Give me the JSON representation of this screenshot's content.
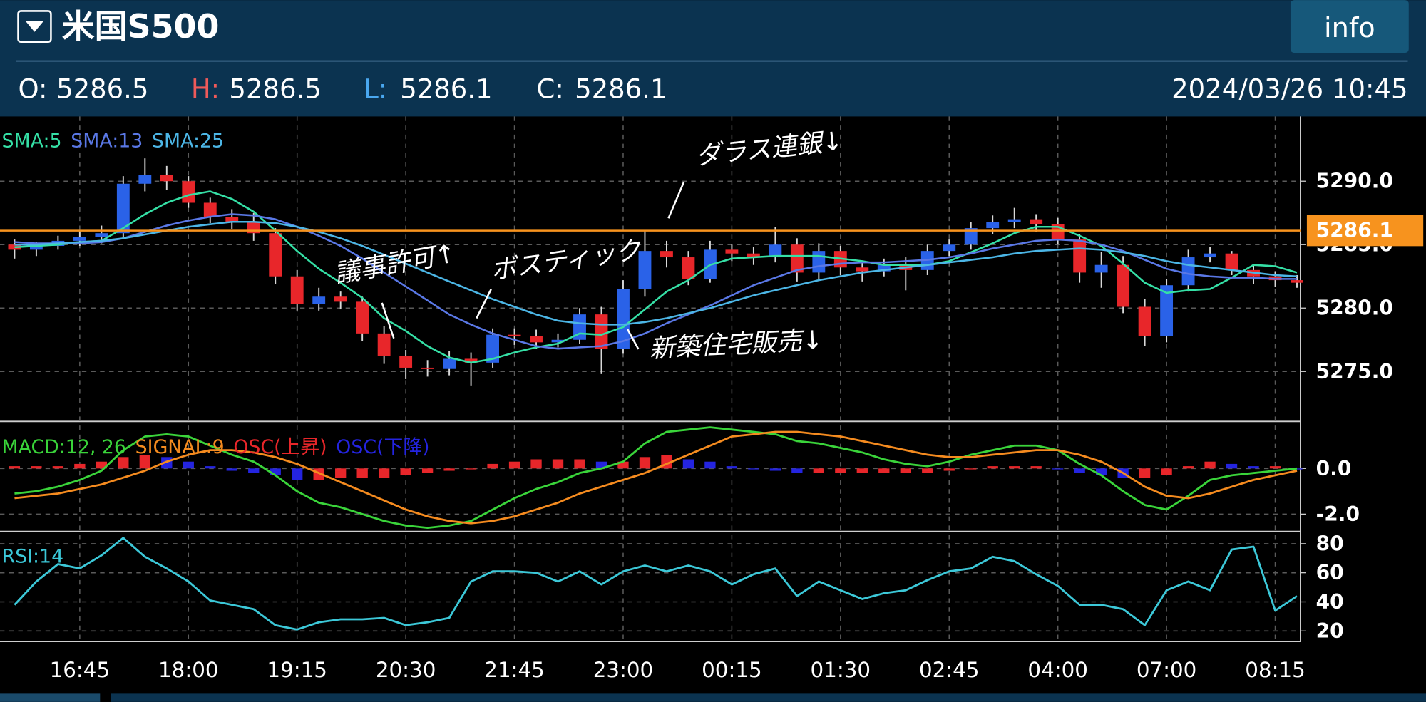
{
  "header": {
    "title": "米国S500",
    "button": "info",
    "ohlc": [
      {
        "label": "O:",
        "value": 5286.5,
        "color": "#ffffff"
      },
      {
        "label": "H:",
        "value": 5286.5,
        "color": "#ee5a5a"
      },
      {
        "label": "L:",
        "value": 5286.1,
        "color": "#4aa8f0"
      },
      {
        "label": "C:",
        "value": 5286.1,
        "color": "#ffffff"
      }
    ],
    "datetime": "2024/03/26 10:45"
  },
  "chart_data": [
    {
      "type": "candlestick",
      "categories": [
        null,
        null,
        null,
        "16:45",
        null,
        null,
        null,
        null,
        "18:00",
        null,
        null,
        null,
        null,
        "19:15",
        null,
        null,
        null,
        null,
        "20:30",
        null,
        null,
        null,
        null,
        "21:45",
        null,
        null,
        null,
        null,
        "23:00",
        null,
        null,
        null,
        null,
        "00:15",
        null,
        null,
        null,
        null,
        "01:30",
        null,
        null,
        null,
        null,
        "02:45",
        null,
        null,
        null,
        null,
        "04:00",
        null,
        null,
        null,
        null,
        "07:00",
        null,
        null,
        null,
        null,
        "08:15",
        null
      ],
      "open": [
        5285.0,
        5284.6,
        5284.9,
        5285.3,
        5285.6,
        5285.9,
        5289.8,
        5290.5,
        5290.0,
        5288.3,
        5287.2,
        5286.8,
        5285.9,
        5282.5,
        5280.3,
        5280.9,
        5280.5,
        5278.0,
        5276.2,
        5275.3,
        5275.2,
        5276.0,
        5275.7,
        5277.9,
        5277.8,
        5277.3,
        5277.5,
        5279.5,
        5276.8,
        5281.5,
        5284.5,
        5284.0,
        5282.3,
        5284.6,
        5284.3,
        5284.0,
        5285.0,
        5282.8,
        5284.5,
        5283.2,
        5282.9,
        5283.4,
        5283.0,
        5284.5,
        5285.0,
        5286.3,
        5286.8,
        5287.0,
        5286.6,
        5285.4,
        5282.8,
        5283.4,
        5280.1,
        5277.8,
        5281.8,
        5284.0,
        5284.3,
        5283.0,
        5282.5,
        5282.2
      ],
      "high": [
        5285.4,
        5285.2,
        5285.7,
        5286.1,
        5286.5,
        5290.4,
        5291.8,
        5291.2,
        5290.4,
        5288.7,
        5287.8,
        5287.5,
        5286.3,
        5283.0,
        5281.6,
        5281.3,
        5280.9,
        5278.6,
        5276.7,
        5275.9,
        5276.6,
        5276.5,
        5278.4,
        5278.4,
        5278.3,
        5278.0,
        5280.0,
        5280.1,
        5282.2,
        5286.1,
        5285.3,
        5284.5,
        5285.3,
        5285.0,
        5284.8,
        5286.4,
        5285.5,
        5285.1,
        5284.9,
        5283.6,
        5283.9,
        5284.0,
        5285.0,
        5285.4,
        5286.8,
        5287.3,
        5287.9,
        5287.4,
        5287.1,
        5285.8,
        5284.4,
        5284.1,
        5280.7,
        5282.3,
        5284.6,
        5284.8,
        5284.5,
        5283.4,
        5282.9,
        5282.6
      ],
      "low": [
        5283.9,
        5284.1,
        5284.6,
        5284.9,
        5285.1,
        5285.5,
        5289.2,
        5289.3,
        5287.9,
        5286.7,
        5286.2,
        5285.3,
        5281.9,
        5279.8,
        5279.8,
        5279.9,
        5277.4,
        5275.6,
        5274.4,
        5274.6,
        5274.7,
        5273.9,
        5275.3,
        5277.1,
        5276.8,
        5276.9,
        5277.2,
        5274.8,
        5276.4,
        5280.9,
        5283.2,
        5281.8,
        5282.0,
        5283.7,
        5283.4,
        5283.6,
        5282.1,
        5282.3,
        5282.6,
        5282.1,
        5282.5,
        5281.4,
        5282.6,
        5284.1,
        5284.6,
        5285.8,
        5286.3,
        5286.0,
        5285.0,
        5282.0,
        5281.6,
        5279.6,
        5277.0,
        5277.3,
        5281.3,
        5283.6,
        5282.6,
        5281.9,
        5281.7,
        5281.6
      ],
      "close": [
        5284.6,
        5284.9,
        5285.3,
        5285.6,
        5285.9,
        5289.8,
        5290.5,
        5290.0,
        5288.3,
        5287.2,
        5286.8,
        5285.9,
        5282.5,
        5280.3,
        5280.9,
        5280.5,
        5278.0,
        5276.2,
        5275.3,
        5275.2,
        5276.0,
        5275.7,
        5277.9,
        5277.8,
        5277.3,
        5277.5,
        5279.5,
        5276.8,
        5281.5,
        5284.5,
        5284.0,
        5282.3,
        5284.6,
        5284.3,
        5284.0,
        5285.0,
        5282.8,
        5284.5,
        5283.2,
        5282.9,
        5283.4,
        5283.0,
        5284.5,
        5285.0,
        5286.3,
        5286.8,
        5287.0,
        5286.6,
        5285.4,
        5282.8,
        5283.4,
        5280.1,
        5277.8,
        5281.8,
        5284.0,
        5284.3,
        5283.0,
        5282.5,
        5282.2,
        5282.0
      ],
      "up_color": "#2a62e8",
      "down_color": "#e8262a",
      "wick_color": "#d8d8d8",
      "series": [
        {
          "name": "SMA:5",
          "color": "#35e0a6",
          "values": [
            5284.8,
            5284.9,
            5285.0,
            5285.2,
            5285.3,
            5286.3,
            5287.4,
            5288.3,
            5288.9,
            5289.2,
            5288.6,
            5287.6,
            5286.1,
            5284.5,
            5283.1,
            5282.0,
            5280.8,
            5279.2,
            5278.2,
            5277.0,
            5276.1,
            5275.7,
            5276.0,
            5276.5,
            5276.9,
            5277.2,
            5278.0,
            5277.9,
            5278.5,
            5279.9,
            5281.3,
            5282.2,
            5283.4,
            5283.9,
            5284.0,
            5284.1,
            5284.1,
            5284.1,
            5283.9,
            5283.7,
            5283.4,
            5283.4,
            5283.4,
            5283.7,
            5284.4,
            5285.1,
            5285.9,
            5286.4,
            5286.4,
            5285.7,
            5284.9,
            5283.5,
            5282.0,
            5281.2,
            5281.4,
            5281.5,
            5282.4,
            5283.4,
            5283.3,
            5282.8
          ]
        },
        {
          "name": "SMA:13",
          "color": "#5a78e6",
          "values": [
            5285.2,
            5285.1,
            5285.1,
            5285.1,
            5285.2,
            5285.5,
            5286.0,
            5286.5,
            5286.9,
            5287.2,
            5287.4,
            5287.3,
            5287.0,
            5286.4,
            5285.7,
            5284.9,
            5283.9,
            5282.8,
            5281.7,
            5280.6,
            5279.5,
            5278.7,
            5278.0,
            5277.5,
            5277.0,
            5276.8,
            5276.9,
            5277.0,
            5277.4,
            5278.0,
            5278.8,
            5279.5,
            5280.2,
            5281.0,
            5281.8,
            5282.4,
            5283.0,
            5283.3,
            5283.5,
            5283.6,
            5283.6,
            5283.7,
            5283.8,
            5284.0,
            5284.3,
            5284.7,
            5285.0,
            5285.3,
            5285.4,
            5285.3,
            5285.0,
            5284.5,
            5283.8,
            5283.1,
            5282.7,
            5282.5,
            5282.4,
            5282.4,
            5282.3,
            5282.3
          ]
        },
        {
          "name": "SMA:25",
          "color": "#4cb6e6",
          "values": [
            5285.0,
            5285.0,
            5285.1,
            5285.2,
            5285.3,
            5285.5,
            5285.8,
            5286.1,
            5286.4,
            5286.6,
            5286.8,
            5286.8,
            5286.7,
            5286.4,
            5286.0,
            5285.5,
            5284.9,
            5284.2,
            5283.5,
            5282.8,
            5282.1,
            5281.4,
            5280.7,
            5280.1,
            5279.5,
            5279.0,
            5278.8,
            5278.7,
            5278.7,
            5278.9,
            5279.2,
            5279.6,
            5280.0,
            5280.5,
            5281.0,
            5281.4,
            5281.8,
            5282.2,
            5282.5,
            5282.8,
            5283.0,
            5283.2,
            5283.4,
            5283.6,
            5283.8,
            5284.0,
            5284.3,
            5284.5,
            5284.6,
            5284.7,
            5284.6,
            5284.4,
            5284.1,
            5283.7,
            5283.4,
            5283.2,
            5283.0,
            5282.8,
            5282.6,
            5282.5
          ]
        }
      ],
      "ylim": [
        5271.1,
        5295.1
      ],
      "yticks": [
        {
          "value": 5275,
          "label": "5275.0"
        },
        {
          "value": 5280,
          "label": "5280.0"
        },
        {
          "value": 5285,
          "label": "5285.0"
        },
        {
          "value": 5290,
          "label": "5290.0"
        }
      ],
      "grid": true,
      "last_price": 5286.1,
      "last_price_color": "#f7931e",
      "annotations": [
        "ダラス連銀↓",
        "ボスティック",
        "議事許可↑",
        "新築住宅販売↓"
      ]
    },
    {
      "type": "macd",
      "series": [
        {
          "name": "MACD:12, 26",
          "color": "#3ad43a",
          "values": [
            -1.1,
            -1.0,
            -0.8,
            -0.5,
            -0.1,
            0.8,
            1.4,
            1.5,
            1.4,
            1.0,
            0.6,
            0.3,
            -0.3,
            -1.0,
            -1.5,
            -1.7,
            -2.0,
            -2.3,
            -2.5,
            -2.6,
            -2.5,
            -2.3,
            -1.8,
            -1.3,
            -0.9,
            -0.6,
            -0.2,
            0.0,
            0.3,
            1.1,
            1.6,
            1.7,
            1.8,
            1.7,
            1.6,
            1.5,
            1.2,
            1.1,
            0.9,
            0.7,
            0.4,
            0.2,
            0.1,
            0.3,
            0.6,
            0.8,
            1.0,
            1.0,
            0.8,
            0.2,
            -0.3,
            -1.0,
            -1.6,
            -1.8,
            -1.2,
            -0.5,
            -0.3,
            -0.2,
            -0.1,
            0.0
          ]
        },
        {
          "name": "SIGNAL:9",
          "color": "#f58b1f",
          "values": [
            -1.3,
            -1.2,
            -1.1,
            -0.9,
            -0.7,
            -0.4,
            -0.1,
            0.3,
            0.6,
            0.8,
            0.8,
            0.7,
            0.5,
            0.2,
            -0.2,
            -0.6,
            -1.0,
            -1.4,
            -1.8,
            -2.1,
            -2.3,
            -2.4,
            -2.3,
            -2.1,
            -1.8,
            -1.5,
            -1.1,
            -0.8,
            -0.5,
            -0.2,
            0.2,
            0.6,
            1.0,
            1.4,
            1.5,
            1.6,
            1.6,
            1.5,
            1.4,
            1.2,
            1.0,
            0.8,
            0.6,
            0.5,
            0.5,
            0.6,
            0.7,
            0.8,
            0.8,
            0.6,
            0.3,
            -0.2,
            -0.8,
            -1.2,
            -1.3,
            -1.1,
            -0.8,
            -0.5,
            -0.3,
            -0.1
          ]
        }
      ],
      "histogram": {
        "values": [
          0.1,
          0.1,
          0.1,
          0.2,
          0.3,
          0.5,
          0.6,
          0.5,
          0.3,
          0.1,
          -0.1,
          -0.2,
          -0.3,
          -0.5,
          -0.5,
          -0.4,
          -0.4,
          -0.4,
          -0.3,
          -0.2,
          -0.1,
          0.0,
          0.2,
          0.3,
          0.4,
          0.4,
          0.4,
          0.3,
          0.3,
          0.5,
          0.6,
          0.4,
          0.3,
          0.1,
          0.0,
          -0.1,
          -0.2,
          -0.2,
          -0.2,
          -0.2,
          -0.2,
          -0.2,
          -0.2,
          -0.1,
          0.0,
          0.1,
          0.1,
          0.1,
          0.0,
          -0.2,
          -0.3,
          -0.4,
          -0.4,
          -0.3,
          0.1,
          0.3,
          0.2,
          0.1,
          0.1,
          0.0
        ],
        "rising": {
          "name": "OSC(上昇)",
          "color": "#e8262a"
        },
        "falling": {
          "name": "OSC(下降)",
          "color": "#2424e0"
        }
      },
      "ylim": [
        -2.7,
        2.0
      ],
      "yticks": [
        {
          "value": 0,
          "label": "0.0"
        },
        {
          "value": -2,
          "label": "-2.0"
        }
      ],
      "grid": true
    },
    {
      "type": "line",
      "series": [
        {
          "name": "RSI:14",
          "color": "#3cc8d8",
          "values": [
            38,
            54,
            66,
            63,
            72,
            84,
            71,
            63,
            54,
            41,
            38,
            35,
            24,
            21,
            26,
            28,
            28,
            29,
            24,
            26,
            29,
            54,
            61,
            61,
            60,
            54,
            61,
            52,
            61,
            65,
            61,
            65,
            61,
            52,
            59,
            63,
            44,
            54,
            48,
            42,
            46,
            48,
            55,
            61,
            63,
            71,
            68,
            59,
            51,
            38,
            38,
            35,
            24,
            48,
            54,
            48,
            76,
            78,
            34,
            44
          ]
        }
      ],
      "ylim": [
        13.1,
        88.1
      ],
      "yticks": [
        20,
        40,
        60,
        80
      ],
      "grid": true
    }
  ]
}
